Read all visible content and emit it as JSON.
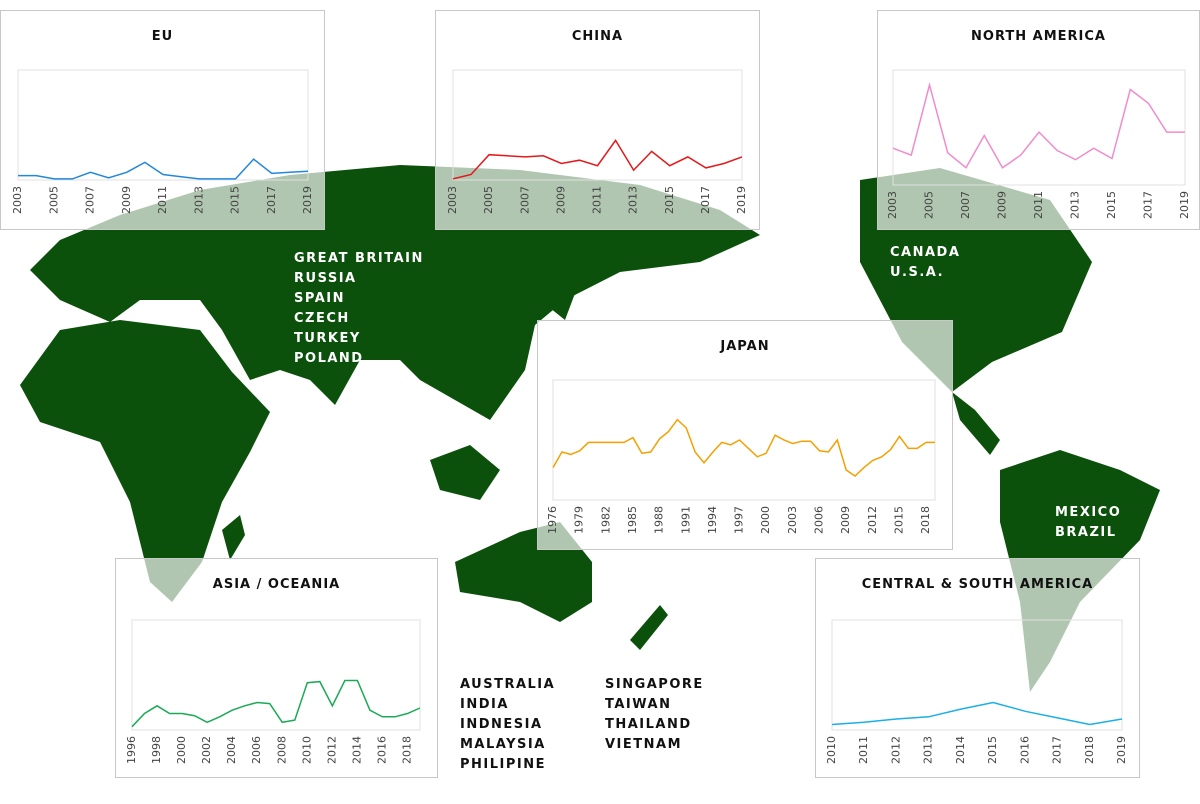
{
  "chart_data": [
    {
      "type": "line",
      "title": "EU",
      "color": "#2288dd",
      "x": [
        2003,
        2004,
        2005,
        2006,
        2007,
        2008,
        2009,
        2010,
        2011,
        2012,
        2013,
        2014,
        2015,
        2016,
        2017,
        2018,
        2019
      ],
      "values": [
        4,
        4,
        1,
        1,
        7,
        2,
        7,
        16,
        5,
        3,
        1,
        1,
        1,
        19,
        6,
        7,
        8
      ],
      "xlim": [
        2003,
        2019
      ],
      "xticks": [
        2003,
        2005,
        2007,
        2009,
        2011,
        2013,
        2015,
        2017,
        2019
      ],
      "ylim": [
        0,
        100
      ]
    },
    {
      "type": "line",
      "title": "CHINA",
      "color": "#e31a1c",
      "x": [
        2003,
        2004,
        2005,
        2006,
        2007,
        2008,
        2009,
        2010,
        2011,
        2012,
        2013,
        2014,
        2015,
        2016,
        2017,
        2018,
        2019
      ],
      "values": [
        1,
        5,
        23,
        22,
        21,
        22,
        15,
        18,
        13,
        36,
        9,
        26,
        13,
        21,
        11,
        15,
        21
      ],
      "xlim": [
        2003,
        2019
      ],
      "xticks": [
        2003,
        2005,
        2007,
        2009,
        2011,
        2013,
        2015,
        2017,
        2019
      ],
      "ylim": [
        0,
        100
      ]
    },
    {
      "type": "line",
      "title": "NORTH AMERICA",
      "color": "#f08ccc",
      "x": [
        2003,
        2004,
        2005,
        2006,
        2007,
        2008,
        2009,
        2010,
        2011,
        2012,
        2013,
        2014,
        2015,
        2016,
        2017,
        2018,
        2019
      ],
      "values": [
        32,
        26,
        87,
        28,
        15,
        43,
        15,
        26,
        46,
        30,
        22,
        32,
        23,
        83,
        71,
        46,
        46
      ],
      "xlim": [
        2003,
        2019
      ],
      "xticks": [
        2003,
        2005,
        2007,
        2009,
        2011,
        2013,
        2015,
        2017,
        2019
      ],
      "ylim": [
        0,
        100
      ]
    },
    {
      "type": "line",
      "title": "JAPAN",
      "color": "#f5a000",
      "x": [
        1976,
        1977,
        1978,
        1979,
        1980,
        1981,
        1982,
        1983,
        1984,
        1985,
        1986,
        1987,
        1988,
        1989,
        1990,
        1991,
        1992,
        1993,
        1994,
        1995,
        1996,
        1997,
        1998,
        1999,
        2000,
        2001,
        2002,
        2003,
        2004,
        2005,
        2006,
        2007,
        2008,
        2009,
        2010,
        2011,
        2012,
        2013,
        2014,
        2015,
        2016,
        2017,
        2018,
        2019
      ],
      "values": [
        27,
        40,
        38,
        41,
        48,
        48,
        48,
        48,
        48,
        52,
        39,
        40,
        51,
        57,
        67,
        60,
        40,
        31,
        40,
        48,
        46,
        50,
        43,
        36,
        39,
        54,
        50,
        47,
        49,
        49,
        41,
        40,
        50,
        25,
        20,
        27,
        33,
        36,
        42,
        53,
        43,
        43,
        48,
        48
      ],
      "xlim": [
        1976,
        2019
      ],
      "xticks": [
        1976,
        1979,
        1982,
        1985,
        1988,
        1991,
        1994,
        1997,
        2000,
        2003,
        2006,
        2009,
        2012,
        2015,
        2018
      ],
      "ylim": [
        0,
        100
      ]
    },
    {
      "type": "line",
      "title": "ASIA / OCEANIA",
      "color": "#1aaa55",
      "x": [
        1996,
        1997,
        1998,
        1999,
        2000,
        2001,
        2002,
        2003,
        2004,
        2005,
        2006,
        2007,
        2008,
        2009,
        2010,
        2011,
        2012,
        2013,
        2014,
        2015,
        2016,
        2017,
        2018,
        2019
      ],
      "values": [
        3,
        15,
        22,
        15,
        15,
        13,
        7,
        12,
        18,
        22,
        25,
        24,
        7,
        9,
        43,
        44,
        22,
        45,
        45,
        18,
        12,
        12,
        15,
        20
      ],
      "xlim": [
        1996,
        2019
      ],
      "xticks": [
        1996,
        1998,
        2000,
        2002,
        2004,
        2006,
        2008,
        2010,
        2012,
        2014,
        2016,
        2018
      ],
      "ylim": [
        0,
        100
      ]
    },
    {
      "type": "line",
      "title": "CENTRAL & SOUTH AMERICA",
      "color": "#1ab0e6",
      "x": [
        2010,
        2011,
        2012,
        2013,
        2014,
        2015,
        2016,
        2017,
        2018,
        2019
      ],
      "values": [
        5,
        7,
        10,
        12,
        19,
        25,
        17,
        11,
        5,
        10
      ],
      "xlim": [
        2010,
        2019
      ],
      "xticks": [
        2010,
        2011,
        2012,
        2013,
        2014,
        2015,
        2016,
        2017,
        2018,
        2019
      ],
      "ylim": [
        0,
        100
      ]
    }
  ],
  "map_labels": [
    [
      "GREAT BRITAIN",
      "RUSSIA",
      "SPAIN",
      "CZECH",
      "TURKEY",
      "POLAND"
    ],
    [
      "CANADA",
      "U.S.A."
    ],
    [
      "MEXICO",
      "BRAZIL"
    ],
    [
      "AUSTRALIA",
      "INDIA",
      "INDNESIA",
      "MALAYSIA",
      "PHILIPINE"
    ],
    [
      "SINGAPORE",
      "TAIWAN",
      "THAILAND",
      "VIETNAM"
    ]
  ]
}
